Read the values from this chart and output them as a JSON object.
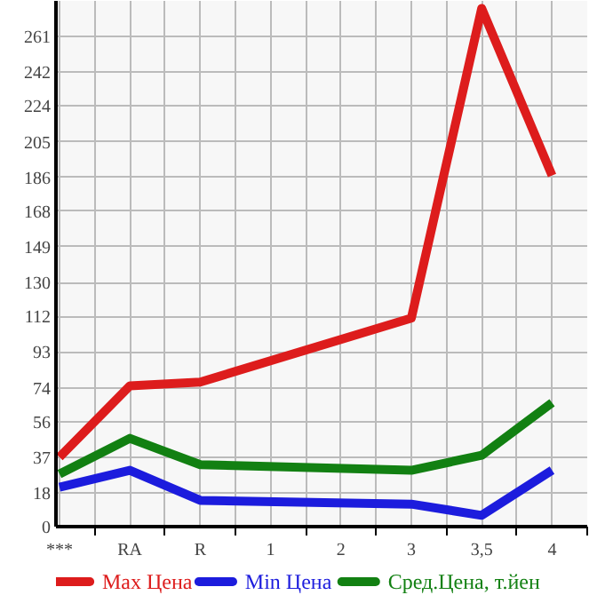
{
  "chart_data": {
    "type": "line",
    "categories": [
      "***",
      "RA",
      "R",
      "1",
      "2",
      "3",
      "3,5",
      "4"
    ],
    "series": [
      {
        "name": "Max Цена",
        "color": "#dd1c1c",
        "values": [
          37,
          75,
          77,
          null,
          null,
          111,
          276,
          187
        ]
      },
      {
        "name": "Min Цена",
        "color": "#1c1cdd",
        "values": [
          21,
          30,
          14,
          null,
          null,
          12,
          6,
          30
        ]
      },
      {
        "name": "Сред.Цена, т.йен",
        "color": "#128012",
        "values": [
          28,
          47,
          33,
          null,
          null,
          30,
          38,
          66
        ]
      }
    ],
    "ylim": [
      0,
      280
    ],
    "yticks": [
      0,
      18,
      37,
      56,
      74,
      93,
      112,
      130,
      149,
      168,
      186,
      205,
      224,
      242,
      261
    ],
    "grid": true,
    "legend": "bottom",
    "marker": "none",
    "line_style": "solid"
  }
}
